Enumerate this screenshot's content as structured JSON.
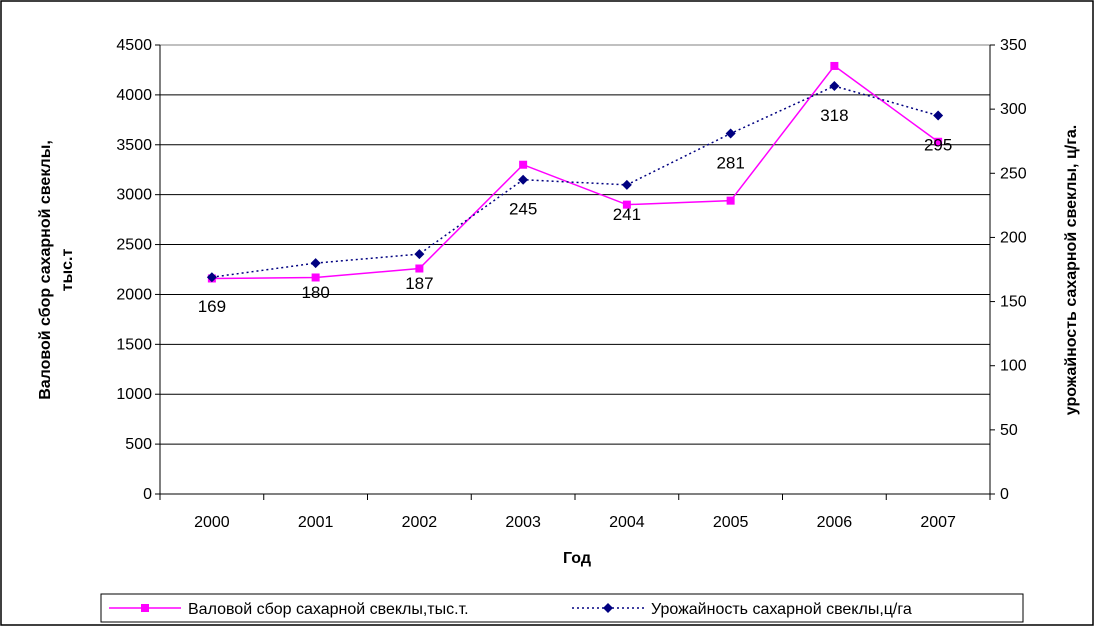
{
  "chart_data": {
    "type": "line",
    "categories": [
      "2000",
      "2001",
      "2002",
      "2003",
      "2004",
      "2005",
      "2006",
      "2007"
    ],
    "xlabel": "Год",
    "ylabel": "Валовой сбор сахарной свеклы, тыс.т",
    "ylabel_line1": "Валовой сбор сахарной свеклы,",
    "ylabel_line2": "тыс.т",
    "y2label": "урожайность сахарной свеклы, ц/га.",
    "ylim": [
      0,
      4500
    ],
    "y2lim": [
      0,
      350
    ],
    "yticks": [
      "0",
      "500",
      "1000",
      "1500",
      "2000",
      "2500",
      "3000",
      "3500",
      "4000",
      "4500"
    ],
    "y2ticks": [
      "0",
      "50",
      "100",
      "150",
      "200",
      "250",
      "300",
      "350"
    ],
    "grid": "horizontal",
    "legend_position": "bottom",
    "series": [
      {
        "name": "Валовой сбор сахарной свеклы,тыс.т.",
        "axis": "left",
        "color": "#ff00ff",
        "marker": "square",
        "line_style": "solid",
        "values": [
          2160,
          2170,
          2260,
          3300,
          2900,
          2940,
          4290,
          3530
        ]
      },
      {
        "name": "Урожайность сахарной свеклы,ц/га",
        "axis": "right",
        "color": "#000080",
        "marker": "diamond",
        "line_style": "dotted",
        "values": [
          169,
          180,
          187,
          245,
          241,
          281,
          318,
          295
        ],
        "labels": [
          "169",
          "180",
          "187",
          "245",
          "241",
          "281",
          "318",
          "295"
        ]
      }
    ]
  }
}
